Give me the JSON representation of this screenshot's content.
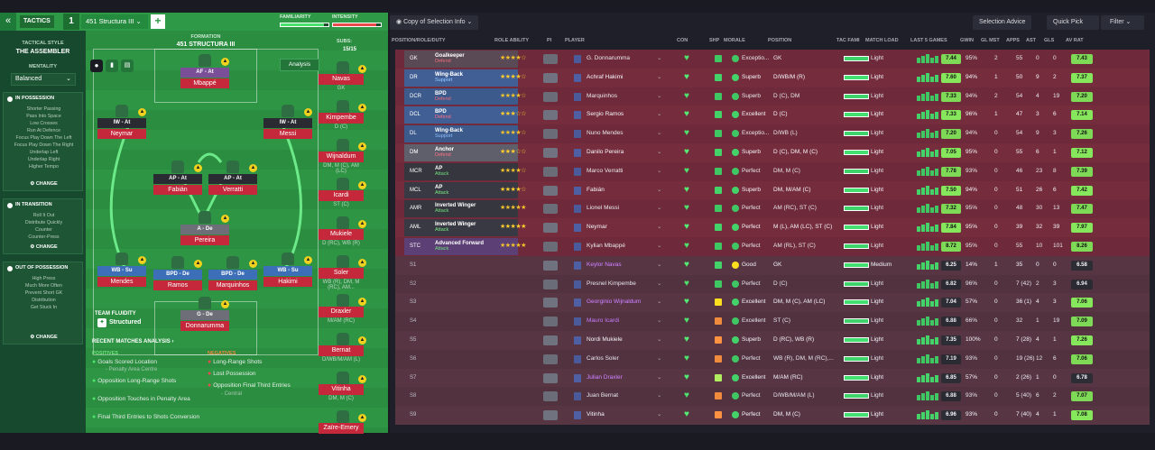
{
  "topbar": {
    "back": "«",
    "tactics_label": "TACTICS",
    "slot_number": "1",
    "tactic_name": "451 Structura III",
    "plus": "+",
    "familiarity_label": "FAMILIARITY",
    "familiarity_value": 0.9,
    "intensity_label": "INTENSITY",
    "intensity_value": 0.9
  },
  "left": {
    "tactical_style_label": "TACTICAL STYLE",
    "tactical_style": "THE ASSEMBLER",
    "mentality_label": "MENTALITY",
    "mentality": "Balanced",
    "sections": [
      {
        "title": "IN POSSESSION",
        "items": [
          "Shorter Passing",
          "Pass Into Space",
          "Low Crosses",
          "Run At Defence",
          "Focus Play Down The Left",
          "Focus Play Down The Right",
          "Underlap Left",
          "Underlap Right",
          "Higher Tempo"
        ],
        "change": "CHANGE"
      },
      {
        "title": "IN TRANSITION",
        "items": [
          "Roll It Out",
          "Distribute Quickly",
          "Counter",
          "Counter-Press"
        ],
        "change": "CHANGE"
      },
      {
        "title": "OUT OF POSSESSION",
        "items": [
          "High Press",
          "Much More Often",
          "Prevent Short GK",
          "Distribution",
          "Get Stuck In"
        ],
        "change": "CHANGE"
      }
    ]
  },
  "pitch": {
    "formation_label": "FORMATION",
    "formation": "451 STRUCTURA III",
    "subs_label": "SUBS:",
    "subs_value": "15/15",
    "analysis_btn": "Analysis",
    "fluidity_label": "TEAM FLUIDITY",
    "fluidity": "Structured",
    "players": [
      {
        "role": "AF - At",
        "name": "Mbappé"
      },
      {
        "role": "IW - At",
        "name": "Neymar"
      },
      {
        "role": "IW - At",
        "name": "Messi"
      },
      {
        "role": "AP - At",
        "name": "Fabián"
      },
      {
        "role": "AP - At",
        "name": "Verratti"
      },
      {
        "role": "A - De",
        "name": "Pereira"
      },
      {
        "role": "WB - Su",
        "name": "Mendes"
      },
      {
        "role": "BPD - De",
        "name": "Ramos"
      },
      {
        "role": "BPD - De",
        "name": "Marquinhos"
      },
      {
        "role": "WB - Su",
        "name": "Hakimi"
      },
      {
        "role": "G - De",
        "name": "Donnarumma"
      }
    ],
    "subs": [
      {
        "name": "Navas",
        "pos": "GK"
      },
      {
        "name": "Kimpembe",
        "pos": "D (C)"
      },
      {
        "name": "Wijnaldum",
        "pos": "DM, M (C), AM (LC)"
      },
      {
        "name": "Icardi",
        "pos": "ST (C)"
      },
      {
        "name": "Mukiele",
        "pos": "D (RC), WB (R)"
      },
      {
        "name": "Soler",
        "pos": "WB (R), DM, M (RC), AM..."
      },
      {
        "name": "Draxler",
        "pos": "M/AM (RC)"
      },
      {
        "name": "Bernat",
        "pos": "D/WB/M/AM (L)"
      },
      {
        "name": "Vitinha",
        "pos": "DM, M (C)"
      },
      {
        "name": "Zaïre-Emery",
        "pos": ""
      }
    ]
  },
  "analysis": {
    "title": "RECENT MATCHES ANALYSIS ›",
    "positives_label": "POSITIVES",
    "negatives_label": "NEGATIVES",
    "positives": [
      {
        "text": "Goals Scored Location",
        "sub": "- Penalty Area Centre"
      },
      {
        "text": "Opposition Long-Range Shots",
        "sub": ""
      },
      {
        "text": "Opposition Touches in Penalty Area",
        "sub": ""
      },
      {
        "text": "Final Third Entries to Shots Conversion",
        "sub": ""
      }
    ],
    "negatives": [
      {
        "text": "Long-Range Shots",
        "sub": ""
      },
      {
        "text": "Lost Possession",
        "sub": ""
      },
      {
        "text": "Opposition Final Third Entries",
        "sub": "- Central"
      }
    ]
  },
  "toolbar": {
    "copy_label": "Copy of Selection Info",
    "selection_advice": "Selection Advice",
    "quick_pick": "Quick Pick",
    "filter": "Filter"
  },
  "table": {
    "headers": [
      "POSITION/ROLE/DUTY",
      "ROLE ABILITY",
      "PI",
      "PLAYER",
      "CON",
      "SHP",
      "MORALE",
      "POSITION",
      "TAC FAMI",
      "MATCH LOAD",
      "LAST 5 GAMES",
      "GWIN",
      "GL MST",
      "APPS",
      "AST",
      "GLS",
      "AV RAT"
    ],
    "rows": [
      {
        "pos": "GK",
        "role": "Goalkeeper",
        "duty": "Defend",
        "stars": "★★★★☆",
        "player": "G. Donnarumma",
        "morale": "Exceptio...",
        "position": "GK",
        "load": "Light",
        "l5": "7.44",
        "gwin": "95%",
        "glmst": "2",
        "apps": "55",
        "ast": "0",
        "gls": "0",
        "avrat": "7.43",
        "dc": "#5a4a55",
        "dutycol": "#f36a7a",
        "shp": "#3fc763",
        "mood": "#3fc763"
      },
      {
        "pos": "DR",
        "role": "Wing-Back",
        "duty": "Support",
        "stars": "★★★★☆",
        "player": "Achraf Hakimi",
        "morale": "Superb",
        "position": "D/WB/M (R)",
        "load": "Light",
        "l5": "7.60",
        "gwin": "94%",
        "glmst": "1",
        "apps": "50",
        "ast": "9",
        "gls": "2",
        "avrat": "7.37",
        "dc": "#3d5a8c",
        "dutycol": "#8fc2ff",
        "shp": "#3fc763",
        "mood": "#3fc763"
      },
      {
        "pos": "DCR",
        "role": "BPD",
        "duty": "Defend",
        "stars": "★★★★☆",
        "player": "Marquinhos",
        "morale": "Superb",
        "position": "D (C), DM",
        "load": "Light",
        "l5": "7.33",
        "gwin": "94%",
        "glmst": "2",
        "apps": "54",
        "ast": "4",
        "gls": "19",
        "avrat": "7.20",
        "dc": "#3d5a8c",
        "dutycol": "#f36a7a",
        "shp": "#3fc763",
        "mood": "#3fc763"
      },
      {
        "pos": "DCL",
        "role": "BPD",
        "duty": "Defend",
        "stars": "★★★☆☆",
        "player": "Sergio Ramos",
        "morale": "Excellent",
        "position": "D (C)",
        "load": "Light",
        "l5": "7.33",
        "gwin": "96%",
        "glmst": "1",
        "apps": "47",
        "ast": "3",
        "gls": "6",
        "avrat": "7.14",
        "dc": "#3d5a8c",
        "dutycol": "#f36a7a",
        "shp": "#3fc763",
        "mood": "#3fc763"
      },
      {
        "pos": "DL",
        "role": "Wing-Back",
        "duty": "Support",
        "stars": "★★★★☆",
        "player": "Nuno Mendes",
        "morale": "Exceptio...",
        "position": "D/WB (L)",
        "load": "Light",
        "l5": "7.20",
        "gwin": "94%",
        "glmst": "0",
        "apps": "54",
        "ast": "9",
        "gls": "3",
        "avrat": "7.26",
        "dc": "#3d5a8c",
        "dutycol": "#8fc2ff",
        "shp": "#3fc763",
        "mood": "#3fc763"
      },
      {
        "pos": "DM",
        "role": "Anchor",
        "duty": "Defend",
        "stars": "★★★☆☆",
        "player": "Danilo Pereira",
        "morale": "Superb",
        "position": "D (C), DM, M (C)",
        "load": "Light",
        "l5": "7.05",
        "gwin": "95%",
        "glmst": "0",
        "apps": "55",
        "ast": "6",
        "gls": "1",
        "avrat": "7.12",
        "dc": "#5a5a66",
        "dutycol": "#f36a7a",
        "shp": "#3fc763",
        "mood": "#3fc763"
      },
      {
        "pos": "MCR",
        "role": "AP",
        "duty": "Attack",
        "stars": "★★★★☆",
        "player": "Marco Verratti",
        "morale": "Perfect",
        "position": "DM, M (C)",
        "load": "Light",
        "l5": "7.78",
        "gwin": "93%",
        "glmst": "0",
        "apps": "46",
        "ast": "23",
        "gls": "8",
        "avrat": "7.39",
        "dc": "#36363f",
        "dutycol": "#6fe07a",
        "shp": "#3fc763",
        "mood": "#3fc763"
      },
      {
        "pos": "MCL",
        "role": "AP",
        "duty": "Attack",
        "stars": "★★★★☆",
        "player": "Fabián",
        "morale": "Superb",
        "position": "DM, M/AM (C)",
        "load": "Light",
        "l5": "7.50",
        "gwin": "94%",
        "glmst": "0",
        "apps": "51",
        "ast": "26",
        "gls": "6",
        "avrat": "7.42",
        "dc": "#36363f",
        "dutycol": "#6fe07a",
        "shp": "#3fc763",
        "mood": "#3fc763"
      },
      {
        "pos": "AMR",
        "role": "Inverted Winger",
        "duty": "Attack",
        "stars": "★★★★★",
        "player": "Lionel Messi",
        "morale": "Perfect",
        "position": "AM (RC), ST (C)",
        "load": "Light",
        "l5": "7.32",
        "gwin": "95%",
        "glmst": "0",
        "apps": "48",
        "ast": "30",
        "gls": "13",
        "avrat": "7.47",
        "dc": "#36363f",
        "dutycol": "#6fe07a",
        "shp": "#3fc763",
        "mood": "#3fc763"
      },
      {
        "pos": "AML",
        "role": "Inverted Winger",
        "duty": "Attack",
        "stars": "★★★★★",
        "player": "Neymar",
        "morale": "Perfect",
        "position": "M (L), AM (LC), ST (C)",
        "load": "Light",
        "l5": "7.84",
        "gwin": "95%",
        "glmst": "0",
        "apps": "39",
        "ast": "32",
        "gls": "39",
        "avrat": "7.97",
        "dc": "#36363f",
        "dutycol": "#6fe07a",
        "shp": "#3fc763",
        "mood": "#3fc763"
      },
      {
        "pos": "STC",
        "role": "Advanced Forward",
        "duty": "Attack",
        "stars": "★★★★★",
        "player": "Kylian Mbappé",
        "morale": "Perfect",
        "position": "AM (RL), ST (C)",
        "load": "Light",
        "l5": "8.72",
        "gwin": "95%",
        "glmst": "0",
        "apps": "55",
        "ast": "10",
        "gls": "101",
        "avrat": "8.26",
        "dc": "#5c3f75",
        "dutycol": "#6fe07a",
        "shp": "#3fc763",
        "mood": "#3fc763"
      },
      {
        "pos": "S1",
        "role": "",
        "duty": "",
        "stars": "",
        "player": "Keylor Navas",
        "morale": "Good",
        "position": "GK",
        "load": "Medium",
        "l5": "6.25",
        "gwin": "14%",
        "glmst": "1",
        "apps": "35",
        "ast": "0",
        "gls": "0",
        "avrat": "6.58",
        "dc": "",
        "dutycol": "#c77dff",
        "shp": "#3fc763",
        "mood": "#f0d21e"
      },
      {
        "pos": "S2",
        "role": "",
        "duty": "",
        "stars": "",
        "player": "Presnel Kimpembe",
        "morale": "Perfect",
        "position": "D (C)",
        "load": "Light",
        "l5": "6.82",
        "gwin": "96%",
        "glmst": "0",
        "apps": "7 (42)",
        "ast": "2",
        "gls": "3",
        "avrat": "6.94",
        "dc": "",
        "dutycol": "#ffffff",
        "shp": "#3fc763",
        "mood": "#3fc763"
      },
      {
        "pos": "S3",
        "role": "",
        "duty": "",
        "stars": "",
        "player": "Georginio Wijnaldum",
        "morale": "Excellent",
        "position": "DM, M (C), AM (LC)",
        "load": "Light",
        "l5": "7.04",
        "gwin": "57%",
        "glmst": "0",
        "apps": "36 (1)",
        "ast": "4",
        "gls": "3",
        "avrat": "7.06",
        "dc": "",
        "dutycol": "#c77dff",
        "shp": "#f0d21e",
        "mood": "#3fc763"
      },
      {
        "pos": "S4",
        "role": "",
        "duty": "",
        "stars": "",
        "player": "Mauro Icardi",
        "morale": "Excellent",
        "position": "ST (C)",
        "load": "Light",
        "l5": "6.88",
        "gwin": "66%",
        "glmst": "0",
        "apps": "32",
        "ast": "1",
        "gls": "19",
        "avrat": "7.09",
        "dc": "",
        "dutycol": "#c77dff",
        "shp": "#f08a3c",
        "mood": "#3fc763"
      },
      {
        "pos": "S5",
        "role": "",
        "duty": "",
        "stars": "",
        "player": "Nordi Mukiele",
        "morale": "Superb",
        "position": "D (RC), WB (R)",
        "load": "Light",
        "l5": "7.35",
        "gwin": "100%",
        "glmst": "0",
        "apps": "7 (28)",
        "ast": "4",
        "gls": "1",
        "avrat": "7.26",
        "dc": "",
        "dutycol": "#ffffff",
        "shp": "#f08a3c",
        "mood": "#3fc763"
      },
      {
        "pos": "S6",
        "role": "",
        "duty": "",
        "stars": "",
        "player": "Carlos Soler",
        "morale": "Perfect",
        "position": "WB (R), DM, M (RC),...",
        "load": "Light",
        "l5": "7.19",
        "gwin": "93%",
        "glmst": "0",
        "apps": "19 (26)",
        "ast": "12",
        "gls": "6",
        "avrat": "7.06",
        "dc": "",
        "dutycol": "#ffffff",
        "shp": "#f08a3c",
        "mood": "#3fc763"
      },
      {
        "pos": "S7",
        "role": "",
        "duty": "",
        "stars": "",
        "player": "Julian Draxler",
        "morale": "Excellent",
        "position": "M/AM (RC)",
        "load": "Light",
        "l5": "6.85",
        "gwin": "57%",
        "glmst": "0",
        "apps": "2 (26)",
        "ast": "1",
        "gls": "0",
        "avrat": "6.78",
        "dc": "",
        "dutycol": "#c77dff",
        "shp": "#a6e05a",
        "mood": "#3fc763"
      },
      {
        "pos": "S8",
        "role": "",
        "duty": "",
        "stars": "",
        "player": "Juan Bernat",
        "morale": "Perfect",
        "position": "D/WB/M/AM (L)",
        "load": "Light",
        "l5": "6.88",
        "gwin": "93%",
        "glmst": "0",
        "apps": "5 (40)",
        "ast": "6",
        "gls": "2",
        "avrat": "7.07",
        "dc": "",
        "dutycol": "#ffffff",
        "shp": "#f08a3c",
        "mood": "#3fc763"
      },
      {
        "pos": "S9",
        "role": "",
        "duty": "",
        "stars": "",
        "player": "Vitinha",
        "morale": "Perfect",
        "position": "DM, M (C)",
        "load": "Light",
        "l5": "6.96",
        "gwin": "93%",
        "glmst": "0",
        "apps": "7 (40)",
        "ast": "4",
        "gls": "1",
        "avrat": "7.08",
        "dc": "",
        "dutycol": "#ffffff",
        "shp": "#f08a3c",
        "mood": "#3fc763"
      }
    ]
  }
}
